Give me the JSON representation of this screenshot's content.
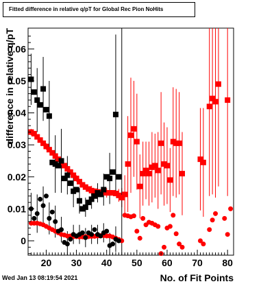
{
  "timestamp": "Wed Jan 13 08:19:54 2021",
  "chart_data": {
    "type": "scatter",
    "title": "Fitted difference in relative q/pT for Global Rec Pion NoHits",
    "xlabel": "No. of Fit Points",
    "ylabel": "difference in relative q/pT",
    "xlim": [
      14,
      82
    ],
    "ylim": [
      -0.0045,
      0.0665
    ],
    "x_ticks": [
      20,
      30,
      40,
      50,
      60,
      70,
      80
    ],
    "y_ticks": [
      0,
      0.01,
      0.02,
      0.03,
      0.04,
      0.05,
      0.06
    ],
    "x_tick_labels": [
      "20",
      "30",
      "40",
      "50",
      "60",
      "70",
      "80"
    ],
    "y_tick_labels": [
      "0",
      "0.01",
      "0.02",
      "0.03",
      "0.04",
      "0.05",
      "0.06"
    ],
    "vertical_line_x": 45,
    "grid": false,
    "legend": "none",
    "colors": {
      "black": "#000000",
      "red": "#ff0000"
    },
    "series": [
      {
        "color": "#ff0000",
        "marker": "square",
        "points": [
          [
            15,
            0.034
          ],
          [
            16,
            0.0335
          ],
          [
            17,
            0.0325
          ],
          [
            18,
            0.0315
          ],
          [
            19,
            0.0305
          ],
          [
            20,
            0.0295
          ],
          [
            21,
            0.0285
          ],
          [
            22,
            0.0275
          ],
          [
            23,
            0.0265
          ],
          [
            24,
            0.0255
          ],
          [
            25,
            0.0245
          ],
          [
            26,
            0.0235
          ],
          [
            27,
            0.0225
          ],
          [
            28,
            0.0215
          ],
          [
            29,
            0.0205
          ],
          [
            30,
            0.0195
          ],
          [
            31,
            0.0185
          ],
          [
            32,
            0.0175
          ],
          [
            33,
            0.0168
          ],
          [
            34,
            0.0162
          ],
          [
            35,
            0.0157
          ],
          [
            36,
            0.0155
          ],
          [
            37,
            0.0153
          ],
          [
            38,
            0.0152
          ],
          [
            39,
            0.0151
          ],
          [
            40,
            0.015
          ],
          [
            41,
            0.015
          ],
          [
            42,
            0.015
          ],
          [
            43,
            0.0148
          ],
          [
            44,
            0.0142
          ],
          [
            45,
            0.0135
          ],
          [
            46,
            0.0145
          ],
          [
            47,
            0.024
          ],
          [
            48,
            0.033
          ],
          [
            49,
            0.035
          ],
          [
            50,
            0.031
          ],
          [
            51,
            0.017
          ],
          [
            52,
            0.021
          ],
          [
            53,
            0.022
          ],
          [
            54,
            0.021
          ],
          [
            55,
            0.023
          ],
          [
            56,
            0.0235
          ],
          [
            57,
            0.022
          ],
          [
            58,
            0.0305
          ],
          [
            59,
            0.024
          ],
          [
            60,
            0.0235
          ],
          [
            61,
            0.019
          ],
          [
            62,
            0.031
          ],
          [
            63,
            0.0305
          ],
          [
            64,
            0.0305
          ],
          [
            65,
            0.021
          ],
          [
            71,
            0.0255
          ],
          [
            72,
            0.0245
          ],
          [
            74,
            0.042
          ],
          [
            75,
            0.0445
          ],
          [
            76,
            0.0435
          ],
          [
            77,
            0.049
          ],
          [
            80,
            0.044
          ]
        ],
        "errors": [
          [
            15,
            0.001
          ],
          [
            20,
            0.001
          ],
          [
            25,
            0.001
          ],
          [
            30,
            0.001
          ],
          [
            35,
            0.0015
          ],
          [
            40,
            0.0015
          ],
          [
            44,
            0.002
          ],
          [
            45,
            0.003
          ],
          [
            46,
            0.006
          ],
          [
            47,
            0.015
          ],
          [
            48,
            0.018
          ],
          [
            49,
            0.015
          ],
          [
            50,
            0.015
          ],
          [
            51,
            0.01
          ],
          [
            52,
            0.01
          ],
          [
            53,
            0.009
          ],
          [
            54,
            0.01
          ],
          [
            55,
            0.011
          ],
          [
            56,
            0.01
          ],
          [
            57,
            0.012
          ],
          [
            58,
            0.016
          ],
          [
            59,
            0.013
          ],
          [
            60,
            0.012
          ],
          [
            61,
            0.01
          ],
          [
            62,
            0.017
          ],
          [
            63,
            0.017
          ],
          [
            64,
            0.016
          ],
          [
            65,
            0.013
          ],
          [
            71,
            0.016
          ],
          [
            72,
            0.017
          ],
          [
            74,
            0.028
          ],
          [
            75,
            0.03
          ],
          [
            76,
            0.03
          ],
          [
            77,
            0.032
          ],
          [
            80,
            0.03
          ]
        ]
      },
      {
        "color": "#ff0000",
        "marker": "circle",
        "points": [
          [
            15,
            0.0055
          ],
          [
            16,
            0.0055
          ],
          [
            17,
            0.0055
          ],
          [
            18,
            0.0053
          ],
          [
            19,
            0.005
          ],
          [
            20,
            0.0045
          ],
          [
            21,
            0.004
          ],
          [
            22,
            0.0035
          ],
          [
            23,
            0.003
          ],
          [
            24,
            0.0025
          ],
          [
            25,
            0.002
          ],
          [
            26,
            0.0018
          ],
          [
            27,
            0.0015
          ],
          [
            28,
            0.0015
          ],
          [
            29,
            0.0013
          ],
          [
            30,
            0.0013
          ],
          [
            31,
            0.0012
          ],
          [
            32,
            0.0012
          ],
          [
            33,
            0.0013
          ],
          [
            34,
            0.0013
          ],
          [
            35,
            0.0014
          ],
          [
            36,
            0.0014
          ],
          [
            37,
            0.0015
          ],
          [
            38,
            0.0016
          ],
          [
            39,
            0.0016
          ],
          [
            40,
            0.0015
          ],
          [
            41,
            0.0015
          ],
          [
            42,
            0.0012
          ],
          [
            43,
            0.0008
          ],
          [
            44,
            0.0004
          ],
          [
            45,
            0.0
          ],
          [
            46,
            0.008
          ],
          [
            47,
            0.0078
          ],
          [
            48,
            0.0075
          ],
          [
            49,
            0.0078
          ],
          [
            50,
            0.003
          ],
          [
            51,
            0.0008
          ],
          [
            52,
            0.007
          ],
          [
            53,
            0.005
          ],
          [
            54,
            0.0058
          ],
          [
            55,
            0.0055
          ],
          [
            56,
            0.005
          ],
          [
            57,
            0.0045
          ],
          [
            58,
            -0.004
          ],
          [
            59,
            -0.002
          ],
          [
            60,
            0.004
          ],
          [
            61,
            0.0045
          ],
          [
            62,
            0.008
          ],
          [
            63,
            0.0022
          ],
          [
            64,
            -0.001
          ],
          [
            65,
            -0.002
          ],
          [
            71,
            0.0
          ],
          [
            72,
            -0.001
          ],
          [
            74,
            0.0035
          ],
          [
            75,
            0.0065
          ],
          [
            76,
            0.0085
          ],
          [
            79,
            0.007
          ],
          [
            80,
            0.002
          ],
          [
            81,
            0.01
          ]
        ]
      },
      {
        "color": "#000000",
        "marker": "square",
        "points": [
          [
            15,
            0.0505
          ],
          [
            16,
            0.0465
          ],
          [
            17,
            0.044
          ],
          [
            18,
            0.0425
          ],
          [
            19,
            0.0475
          ],
          [
            20,
            0.041
          ],
          [
            21,
            0.039
          ],
          [
            22,
            0.0245
          ],
          [
            23,
            0.024
          ],
          [
            24,
            0.0235
          ],
          [
            25,
            0.025
          ],
          [
            26,
            0.0195
          ],
          [
            27,
            0.0205
          ],
          [
            28,
            0.018
          ],
          [
            29,
            0.0155
          ],
          [
            30,
            0.016
          ],
          [
            31,
            0.0125
          ],
          [
            32,
            0.01
          ],
          [
            33,
            0.0105
          ],
          [
            34,
            0.012
          ],
          [
            35,
            0.013
          ],
          [
            36,
            0.014
          ],
          [
            37,
            0.015
          ],
          [
            38,
            0.0145
          ],
          [
            39,
            0.016
          ],
          [
            40,
            0.02
          ],
          [
            41,
            0.0195
          ],
          [
            42,
            0.0215
          ],
          [
            43,
            0.0395
          ],
          [
            44,
            0.02
          ]
        ],
        "errors": [
          [
            15,
            0.008
          ],
          [
            17,
            0.01
          ],
          [
            19,
            0.01
          ],
          [
            21,
            0.011
          ],
          [
            23,
            0.009
          ],
          [
            25,
            0.01
          ],
          [
            27,
            0.006
          ],
          [
            29,
            0.005
          ],
          [
            31,
            0.004
          ],
          [
            33,
            0.003
          ],
          [
            35,
            0.003
          ],
          [
            37,
            0.003
          ],
          [
            39,
            0.005
          ],
          [
            41,
            0.008
          ],
          [
            43,
            0.025
          ]
        ]
      },
      {
        "color": "#000000",
        "marker": "circle",
        "points": [
          [
            15,
            0.01
          ],
          [
            16,
            0.007
          ],
          [
            17,
            0.0085
          ],
          [
            18,
            0.013
          ],
          [
            19,
            0.011
          ],
          [
            20,
            0.014
          ],
          [
            21,
            0.007
          ],
          [
            22,
            0.009
          ],
          [
            23,
            0.006
          ],
          [
            24,
            0.003
          ],
          [
            25,
            0.0035
          ],
          [
            26,
            -0.0005
          ],
          [
            27,
            -0.001
          ],
          [
            28,
            0.0005
          ],
          [
            29,
            0.002
          ],
          [
            30,
            0.0015
          ],
          [
            31,
            0.002
          ],
          [
            32,
            0.0025
          ],
          [
            33,
            0.001
          ],
          [
            34,
            0.0025
          ],
          [
            35,
            0.002
          ],
          [
            36,
            0.0035
          ],
          [
            37,
            0.002
          ],
          [
            38,
            0.0015
          ],
          [
            39,
            0.0025
          ],
          [
            40,
            0.003
          ],
          [
            41,
            -0.0015
          ],
          [
            42,
            -0.001
          ],
          [
            43,
            0.0005
          ],
          [
            44,
            0.0
          ]
        ],
        "errors": [
          [
            15,
            0.005
          ],
          [
            17,
            0.006
          ],
          [
            19,
            0.006
          ],
          [
            21,
            0.005
          ],
          [
            23,
            0.005
          ],
          [
            25,
            0.004
          ],
          [
            27,
            0.004
          ],
          [
            29,
            0.003
          ],
          [
            31,
            0.003
          ],
          [
            33,
            0.003
          ],
          [
            35,
            0.003
          ],
          [
            37,
            0.003
          ],
          [
            39,
            0.003
          ],
          [
            41,
            0.004
          ],
          [
            43,
            0.004
          ]
        ]
      }
    ]
  }
}
